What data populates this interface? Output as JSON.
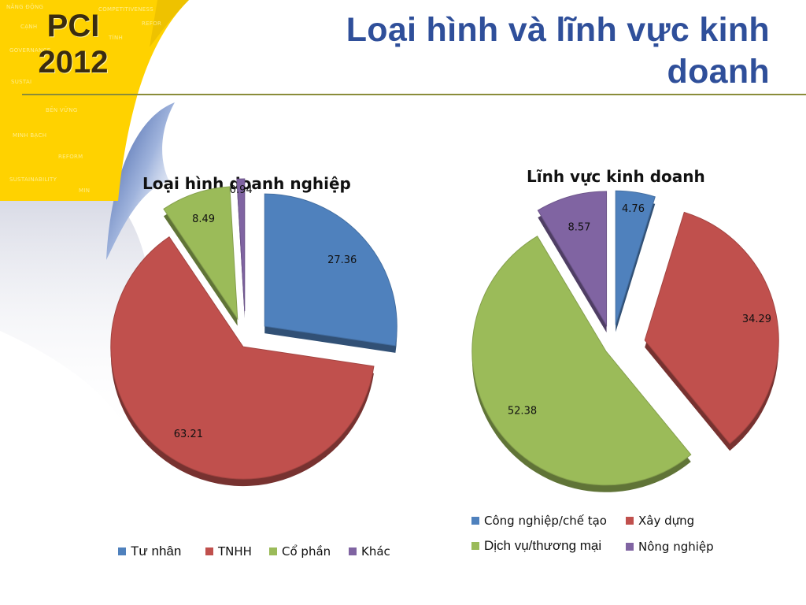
{
  "slide": {
    "title": "Loại hình và lĩnh vực kinh doanh",
    "logo": {
      "line1": "PCI",
      "line2": "2012"
    },
    "background_words": [
      "NĂNG ĐỘNG",
      "COMPETITIVENESS",
      "CẠNH",
      "REFOR",
      "TÍNH",
      "GOVERNANCE",
      "SUSTAI",
      "BỀN VỮNG",
      "MINH BẠCH",
      "REFORM",
      "SUSTAINABILITY",
      "MIN"
    ],
    "colors": {
      "title": "#2f4f9a",
      "logo_bg": "#ffd200",
      "rule": "#8a8c3a",
      "swoosh": "#2e4f9c"
    }
  },
  "chart_data": [
    {
      "type": "pie",
      "title": "Loại hình doanh nghiệp",
      "categories": [
        "Tư nhân",
        "TNHH",
        "Cổ phần",
        "Khác"
      ],
      "values": [
        27.36,
        63.21,
        8.49,
        0.94
      ],
      "labels": [
        "27.36",
        "63.21",
        "8.49",
        "0.94"
      ],
      "colors": [
        "#4f81bd",
        "#c0504d",
        "#9bbb59",
        "#8064a2"
      ],
      "legend_position": "bottom",
      "exploded": true
    },
    {
      "type": "pie",
      "title": "Lĩnh vực kinh doanh",
      "categories": [
        "Công nghiệp/chế tạo",
        "Xây dựng",
        "Dịch vụ/thương mại",
        "Nông nghiệp"
      ],
      "values": [
        4.76,
        34.29,
        52.38,
        8.57
      ],
      "labels": [
        "4.76",
        "34.29",
        "52.38",
        "8.57"
      ],
      "colors": [
        "#4f81bd",
        "#c0504d",
        "#9bbb59",
        "#8064a2"
      ],
      "legend_position": "bottom",
      "exploded": true
    }
  ]
}
